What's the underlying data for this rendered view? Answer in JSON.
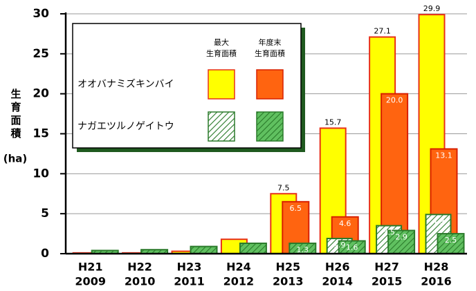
{
  "chart_data": {
    "type": "bar",
    "y_label": "生育面積",
    "y_unit": "(ha)",
    "categories": [
      [
        "H21",
        "2009"
      ],
      [
        "H22",
        "2010"
      ],
      [
        "H23",
        "2011"
      ],
      [
        "H24",
        "2012"
      ],
      [
        "H25",
        "2013"
      ],
      [
        "H26",
        "2014"
      ],
      [
        "H27",
        "2015"
      ],
      [
        "H28",
        "2016"
      ]
    ],
    "ylim": [
      0,
      30
    ],
    "yticks": [
      0,
      5,
      10,
      15,
      20,
      25,
      30
    ],
    "grid": true,
    "legend": {
      "columns": [
        [
          "最大",
          "生育面積"
        ],
        [
          "年度末",
          "生育面積"
        ]
      ],
      "rows": [
        "オオバナミズキンバイ",
        "ナガエツルノゲイトウ"
      ]
    },
    "series": [
      {
        "color": "#ffff00",
        "edge": "#e83018",
        "hatch": false,
        "label_position": "above",
        "values": [
          0.1,
          0.1,
          0.3,
          1.8,
          7.5,
          15.7,
          27.1,
          29.9
        ],
        "value_labels": [
          null,
          null,
          null,
          null,
          "7.5",
          "15.7",
          "27.1",
          "29.9"
        ]
      },
      {
        "color": "#ff6410",
        "edge": "#d82000",
        "hatch": false,
        "label_position": "inside",
        "values": [
          null,
          null,
          null,
          null,
          6.5,
          4.6,
          20.0,
          13.1
        ],
        "value_labels": [
          null,
          null,
          null,
          null,
          "6.5",
          "4.6",
          "20.0",
          "13.1"
        ]
      },
      {
        "color": "#ffffff",
        "edge": "#2a7a2a",
        "hatch": true,
        "label_position": "inside",
        "values": [
          null,
          null,
          null,
          null,
          null,
          1.9,
          3.5,
          4.9
        ],
        "value_labels": [
          null,
          null,
          null,
          null,
          null,
          "1.9",
          "3.5",
          "4.9"
        ]
      },
      {
        "color": "#60c060",
        "edge": "#2a7a2a",
        "hatch": true,
        "label_position": "inside",
        "values": [
          0.4,
          0.5,
          0.9,
          1.3,
          1.3,
          1.6,
          2.9,
          2.5
        ],
        "value_labels": [
          null,
          null,
          null,
          null,
          "1.3",
          "1.6",
          "2.9",
          "2.5"
        ]
      }
    ]
  }
}
